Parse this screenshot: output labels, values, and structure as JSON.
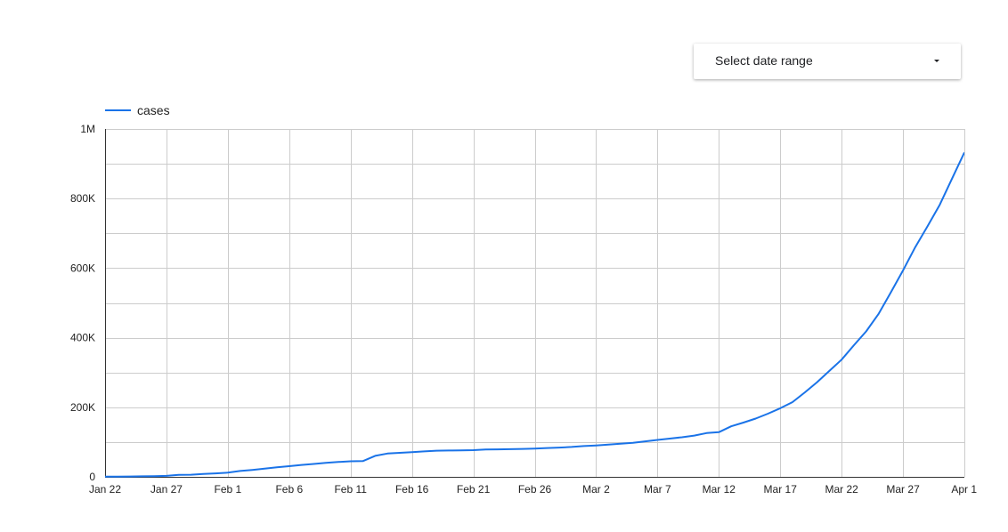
{
  "controls": {
    "date_range_label": "Select date range",
    "dropdown_icon": "caret-down-icon"
  },
  "colors": {
    "series": "#1a73e8",
    "grid": "#cccccc",
    "axis": "#333333"
  },
  "chart_data": {
    "type": "line",
    "title": "",
    "xlabel": "",
    "ylabel": "",
    "legend_position": "top-left",
    "grid": true,
    "ylim": [
      0,
      1000000
    ],
    "yticks": [
      0,
      200000,
      400000,
      600000,
      800000,
      1000000
    ],
    "ytick_labels": [
      "0",
      "200K",
      "400K",
      "600K",
      "800K",
      "1M"
    ],
    "xlim": [
      "2020-01-22",
      "2020-04-01"
    ],
    "xticks": [
      "2020-01-22",
      "2020-01-27",
      "2020-02-01",
      "2020-02-06",
      "2020-02-11",
      "2020-02-16",
      "2020-02-21",
      "2020-02-26",
      "2020-03-02",
      "2020-03-07",
      "2020-03-12",
      "2020-03-17",
      "2020-03-22",
      "2020-03-27",
      "2020-04-01"
    ],
    "xtick_labels": [
      "Jan 22",
      "Jan 27",
      "Feb 1",
      "Feb 6",
      "Feb 11",
      "Feb 16",
      "Feb 21",
      "Feb 26",
      "Mar 2",
      "Mar 7",
      "Mar 12",
      "Mar 17",
      "Mar 22",
      "Mar 27",
      "Apr 1"
    ],
    "series": [
      {
        "name": "cases",
        "x": [
          "2020-01-22",
          "2020-01-23",
          "2020-01-24",
          "2020-01-25",
          "2020-01-26",
          "2020-01-27",
          "2020-01-28",
          "2020-01-29",
          "2020-01-30",
          "2020-01-31",
          "2020-02-01",
          "2020-02-02",
          "2020-02-03",
          "2020-02-04",
          "2020-02-05",
          "2020-02-06",
          "2020-02-07",
          "2020-02-08",
          "2020-02-09",
          "2020-02-10",
          "2020-02-11",
          "2020-02-12",
          "2020-02-13",
          "2020-02-14",
          "2020-02-15",
          "2020-02-16",
          "2020-02-17",
          "2020-02-18",
          "2020-02-19",
          "2020-02-20",
          "2020-02-21",
          "2020-02-22",
          "2020-02-23",
          "2020-02-24",
          "2020-02-25",
          "2020-02-26",
          "2020-02-27",
          "2020-02-28",
          "2020-02-29",
          "2020-03-01",
          "2020-03-02",
          "2020-03-03",
          "2020-03-04",
          "2020-03-05",
          "2020-03-06",
          "2020-03-07",
          "2020-03-08",
          "2020-03-09",
          "2020-03-10",
          "2020-03-11",
          "2020-03-12",
          "2020-03-13",
          "2020-03-14",
          "2020-03-15",
          "2020-03-16",
          "2020-03-17",
          "2020-03-18",
          "2020-03-19",
          "2020-03-20",
          "2020-03-21",
          "2020-03-22",
          "2020-03-23",
          "2020-03-24",
          "2020-03-25",
          "2020-03-26",
          "2020-03-27",
          "2020-03-28",
          "2020-03-29",
          "2020-03-30",
          "2020-03-31",
          "2020-04-01"
        ],
        "values": [
          555,
          654,
          941,
          1434,
          2118,
          2927,
          5578,
          6167,
          8235,
          9927,
          12038,
          16787,
          19887,
          23898,
          27643,
          30802,
          34395,
          37129,
          40150,
          42762,
          44802,
          45221,
          60368,
          66885,
          69030,
          71224,
          73258,
          75136,
          75639,
          76197,
          76819,
          78572,
          78958,
          79561,
          80406,
          81388,
          82746,
          84112,
          86011,
          88369,
          90306,
          92840,
          95120,
          98001,
          102145,
          106097,
          109949,
          113785,
          118592,
          125865,
          128343,
          145193,
          156097,
          167449,
          181546,
          197168,
          214915,
          242713,
          272167,
          304528,
          336953,
          378235,
          418045,
          467653,
          529591,
          593291,
          660706,
          720117,
          782365,
          857487,
          932605
        ]
      }
    ]
  }
}
